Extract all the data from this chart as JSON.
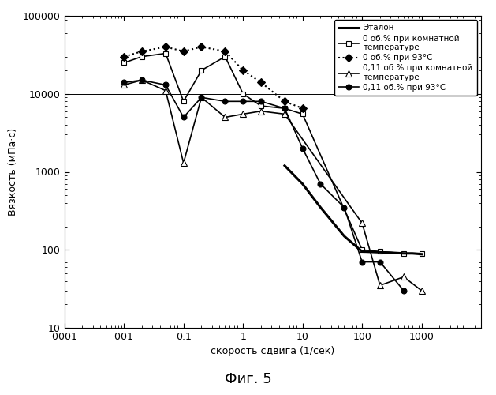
{
  "title": "Фиг. 5",
  "xlabel": "скорость сдвига (1/сек)",
  "ylabel": "Вязкость (мПа·с)",
  "xlim": [
    0.001,
    10000
  ],
  "ylim": [
    10,
    100000
  ],
  "etalon": {
    "x": [
      5,
      10,
      20,
      50,
      100,
      200,
      300,
      500,
      700,
      1000
    ],
    "y": [
      1200,
      700,
      350,
      150,
      95,
      93,
      92,
      90,
      90,
      88
    ],
    "color": "#000000",
    "linestyle": "-",
    "linewidth": 2.2,
    "label": "Эталон"
  },
  "series_0pct_room": {
    "x": [
      0.01,
      0.02,
      0.05,
      0.1,
      0.2,
      0.5,
      1.0,
      2.0,
      5.0,
      10.0,
      100,
      200,
      500,
      1000
    ],
    "y": [
      25000,
      30000,
      33000,
      8000,
      20000,
      30000,
      10000,
      7000,
      6500,
      5500,
      100,
      95,
      90,
      90
    ],
    "color": "#000000",
    "marker": "s",
    "markerfacecolor": "white",
    "markersize": 5,
    "linestyle": "-",
    "linewidth": 1.2,
    "label": "0 об.% при комнатной\nтемпературе"
  },
  "series_0pct_93": {
    "x": [
      0.01,
      0.02,
      0.05,
      0.1,
      0.2,
      0.5,
      1.0,
      2.0,
      5.0,
      10.0
    ],
    "y": [
      30000,
      35000,
      40000,
      35000,
      40000,
      35000,
      20000,
      14000,
      8000,
      6500
    ],
    "color": "#000000",
    "marker": "D",
    "markerfacecolor": "#000000",
    "markersize": 5,
    "linestyle": ":",
    "linewidth": 1.5,
    "label": "0 об.% при 93°C"
  },
  "series_011pct_room": {
    "x": [
      0.01,
      0.02,
      0.05,
      0.1,
      0.2,
      0.5,
      1.0,
      2.0,
      5.0,
      100,
      200,
      500,
      1000
    ],
    "y": [
      13000,
      15000,
      11000,
      1300,
      9000,
      5000,
      5500,
      6000,
      5500,
      220,
      35,
      45,
      30
    ],
    "color": "#000000",
    "marker": "^",
    "markerfacecolor": "white",
    "markersize": 6,
    "linestyle": "-",
    "linewidth": 1.2,
    "label": "0,11 об.% при комнатной\nтемпературе"
  },
  "series_011pct_93": {
    "x": [
      0.01,
      0.02,
      0.05,
      0.1,
      0.2,
      0.5,
      1.0,
      2.0,
      5.0,
      10.0,
      20,
      50,
      100,
      200,
      500
    ],
    "y": [
      14000,
      15000,
      13000,
      5000,
      9000,
      8000,
      8000,
      8000,
      6500,
      2000,
      700,
      350,
      70,
      70,
      30
    ],
    "color": "#000000",
    "marker": "o",
    "markerfacecolor": "#000000",
    "markersize": 5,
    "linestyle": "-",
    "linewidth": 1.2,
    "label": "0,11 об.% при 93°C"
  },
  "hline_10000": {
    "y": 10000,
    "color": "#000000",
    "linestyle": "-",
    "linewidth": 0.7
  },
  "hline_100": {
    "y": 100,
    "color": "#444444",
    "linestyle": "-.",
    "linewidth": 0.7
  },
  "xtick_labels": [
    "0​001",
    "0​01",
    "0.1",
    "1",
    "10",
    "100",
    "1000"
  ],
  "xtick_values": [
    0.001,
    0.01,
    0.1,
    1,
    10,
    100,
    1000
  ],
  "ytick_labels": [
    "100000",
    "10000",
    "1000",
    "100",
    "10"
  ],
  "ytick_values": [
    100000,
    10000,
    1000,
    100,
    10
  ]
}
